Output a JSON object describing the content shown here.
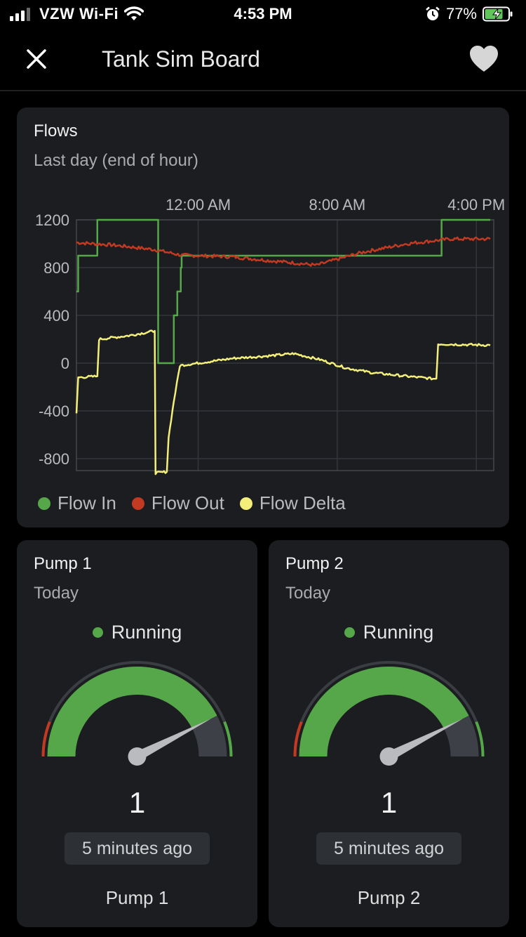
{
  "status_bar": {
    "carrier": "VZW Wi-Fi",
    "time": "4:53 PM",
    "battery": "77%"
  },
  "header": {
    "title": "Tank Sim Board"
  },
  "flows": {
    "title": "Flows",
    "subtitle": "Last day (end of hour)",
    "legend": [
      {
        "label": "Flow In",
        "color": "#55a74a"
      },
      {
        "label": "Flow Out",
        "color": "#c23a22"
      },
      {
        "label": "Flow Delta",
        "color": "#f4ef7a"
      }
    ],
    "chart_data": {
      "type": "line",
      "title": "Flows",
      "subtitle": "Last day (end of hour)",
      "xlabel": "",
      "ylabel": "",
      "ylim": [
        -900,
        1200
      ],
      "y_ticks": [
        1200,
        800,
        400,
        0,
        -400,
        -800
      ],
      "x_ticks": [
        {
          "label": "12:00 AM",
          "hours": 0
        },
        {
          "label": "8:00 AM",
          "hours": 8
        },
        {
          "label": "4:00 PM",
          "hours": 16
        }
      ],
      "xlim_hours": [
        -7,
        17
      ],
      "legend_position": "bottom",
      "grid": true,
      "series": [
        {
          "name": "Flow In",
          "color": "#55a74a",
          "step": true,
          "points": [
            [
              -7,
              600
            ],
            [
              -6.9,
              900
            ],
            [
              -5.8,
              1200
            ],
            [
              -2.5,
              1200
            ],
            [
              -2.3,
              0
            ],
            [
              -1.6,
              0
            ],
            [
              -1.4,
              400
            ],
            [
              -1.2,
              600
            ],
            [
              -1.0,
              800
            ],
            [
              -0.95,
              900
            ],
            [
              5.6,
              900
            ],
            [
              13.7,
              900
            ],
            [
              14,
              1200
            ],
            [
              16.8,
              1200
            ]
          ]
        },
        {
          "name": "Flow Out",
          "color": "#c23a22",
          "step": false,
          "noise": 14,
          "points": [
            [
              -7,
              1010
            ],
            [
              -5,
              990
            ],
            [
              -4,
              975
            ],
            [
              -2.5,
              950
            ],
            [
              -1,
              905
            ],
            [
              2,
              890
            ],
            [
              4,
              860
            ],
            [
              5.5,
              840
            ],
            [
              6.8,
              820
            ],
            [
              8,
              870
            ],
            [
              9.5,
              930
            ],
            [
              12,
              1000
            ],
            [
              14.5,
              1040
            ],
            [
              16.8,
              1040
            ]
          ]
        },
        {
          "name": "Flow Delta",
          "color": "#f4ef7a",
          "step": false,
          "noise": 10,
          "points": [
            [
              -7,
              -420
            ],
            [
              -6.9,
              -120
            ],
            [
              -5.8,
              -110
            ],
            [
              -5.7,
              200
            ],
            [
              -4,
              230
            ],
            [
              -2.5,
              270
            ],
            [
              -2.45,
              -920
            ],
            [
              -1.8,
              -910
            ],
            [
              -1.7,
              -620
            ],
            [
              -1.4,
              -320
            ],
            [
              -1.05,
              -20
            ],
            [
              0.5,
              10
            ],
            [
              2,
              40
            ],
            [
              4,
              60
            ],
            [
              5.5,
              80
            ],
            [
              7,
              30
            ],
            [
              8.5,
              -40
            ],
            [
              10,
              -80
            ],
            [
              12,
              -110
            ],
            [
              13.5,
              -130
            ],
            [
              13.7,
              -130
            ],
            [
              13.8,
              160
            ],
            [
              16.8,
              150
            ]
          ]
        }
      ]
    }
  },
  "pumps": [
    {
      "title": "Pump 1",
      "subtitle": "Today",
      "status": "Running",
      "value": "1",
      "updated": "5 minutes ago",
      "name": "Pump 1",
      "gauge_fraction": 0.85,
      "accent": "#55a74a"
    },
    {
      "title": "Pump 2",
      "subtitle": "Today",
      "status": "Running",
      "value": "1",
      "updated": "5 minutes ago",
      "name": "Pump 2",
      "gauge_fraction": 0.85,
      "accent": "#55a74a"
    }
  ],
  "icons": {
    "close": "close-icon",
    "favorite": "heart-icon",
    "wifi": "wifi-icon",
    "alarm": "alarm-icon",
    "battery": "battery-charging-icon"
  }
}
